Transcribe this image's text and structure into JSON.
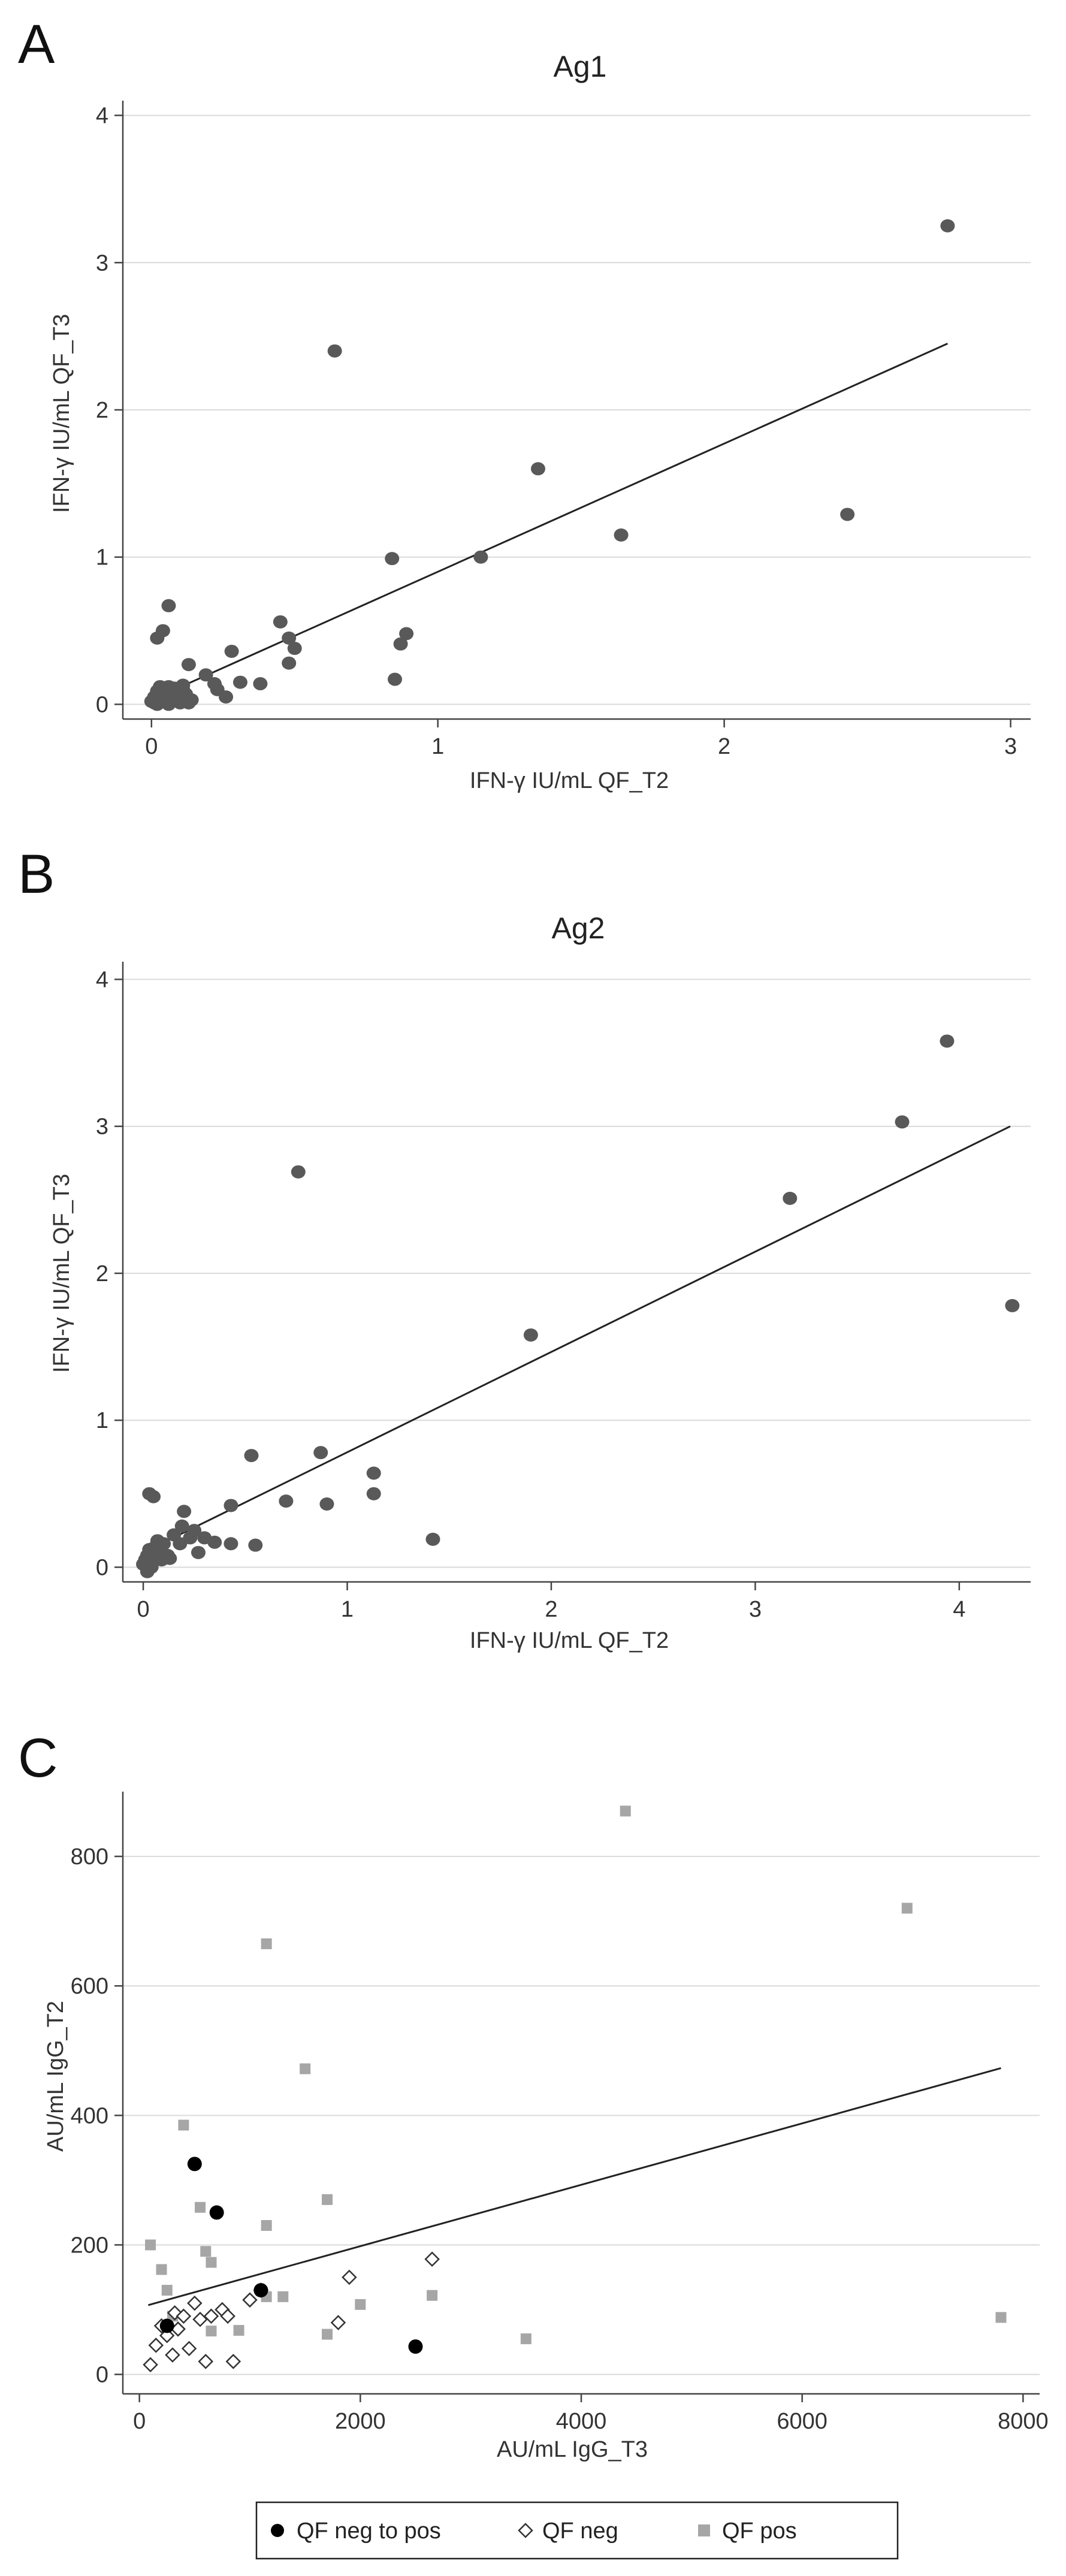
{
  "chart_data": [
    {
      "panel_label": "A",
      "type": "scatter",
      "title": "Ag1",
      "xlabel": "IFN-γ IU/mL QF_T2",
      "ylabel": "IFN-γ IU/mL QF_T3",
      "xlim": [
        -0.1,
        3.07
      ],
      "ylim": [
        -0.1,
        4.1
      ],
      "xticks": [
        0,
        1,
        2,
        3
      ],
      "yticks": [
        0,
        1,
        2,
        3,
        4
      ],
      "xtick_labels": [
        "0",
        "1",
        "2",
        "3"
      ],
      "ytick_labels": [
        "0",
        "1",
        "2",
        "3",
        "4"
      ],
      "grid": true,
      "marker_color": "#595959",
      "fit_line": {
        "x": [
          0,
          2.78
        ],
        "y": [
          0.03,
          2.45
        ]
      },
      "points": {
        "x": [
          2.78,
          0.64,
          1.35,
          1.64,
          2.43,
          0.84,
          1.15,
          0.04,
          0.06,
          0.02,
          0.45,
          0.48,
          0.5,
          0.89,
          0.87,
          0.85,
          0.28,
          0.13,
          0.19,
          0.31,
          0.38,
          0.48,
          0.23,
          0.26,
          0.0,
          0.01,
          0.02,
          0.03,
          0.05,
          0.07,
          0.08,
          0.09,
          0.1,
          0.11,
          0.12,
          0.13,
          0.02,
          0.04,
          0.06,
          0.08,
          0.1,
          0.12,
          0.14,
          0.01,
          0.03,
          0.06,
          0.09,
          0.22,
          0.11
        ],
        "y": [
          3.25,
          2.4,
          1.6,
          1.15,
          1.29,
          0.99,
          1.0,
          0.5,
          0.67,
          0.45,
          0.56,
          0.45,
          0.38,
          0.48,
          0.41,
          0.17,
          0.36,
          0.27,
          0.2,
          0.15,
          0.14,
          0.28,
          0.1,
          0.05,
          0.02,
          0.05,
          0.09,
          0.12,
          0.04,
          0.08,
          0.11,
          0.06,
          0.03,
          0.1,
          0.05,
          0.01,
          0.0,
          0.02,
          0.0,
          0.04,
          0.01,
          0.07,
          0.03,
          0.01,
          0.06,
          0.12,
          0.08,
          0.14,
          0.13
        ]
      }
    },
    {
      "panel_label": "B",
      "type": "scatter",
      "title": "Ag2",
      "xlabel": "IFN-γ IU/mL QF_T2",
      "ylabel": "IFN-γ IU/mL QF_T3",
      "xlim": [
        -0.1,
        4.35
      ],
      "ylim": [
        -0.1,
        4.12
      ],
      "xticks": [
        0,
        1,
        2,
        3,
        4
      ],
      "yticks": [
        0,
        1,
        2,
        3,
        4
      ],
      "xtick_labels": [
        "0",
        "1",
        "2",
        "3",
        "4"
      ],
      "ytick_labels": [
        "0",
        "1",
        "2",
        "3",
        "4"
      ],
      "grid": true,
      "marker_color": "#595959",
      "fit_line": {
        "x": [
          0,
          4.25
        ],
        "y": [
          0.1,
          3.0
        ]
      },
      "points": {
        "x": [
          3.94,
          3.72,
          3.17,
          4.26,
          0.76,
          1.9,
          0.53,
          0.87,
          0.7,
          0.9,
          1.13,
          1.13,
          1.42,
          0.43,
          0.55,
          0.43,
          0.03,
          0.05,
          0.2,
          0.19,
          0.25,
          0.3,
          0.23,
          0.35,
          0.27,
          0.1,
          0.12,
          0.07,
          0.0,
          0.01,
          0.02,
          0.03,
          0.05,
          0.06,
          0.08,
          0.09,
          0.02,
          0.04,
          0.13,
          0.15,
          0.18,
          0.01,
          0.03,
          0.06
        ],
        "y": [
          3.58,
          3.03,
          2.51,
          1.78,
          2.69,
          1.58,
          0.76,
          0.78,
          0.45,
          0.43,
          0.5,
          0.64,
          0.19,
          0.42,
          0.15,
          0.16,
          0.5,
          0.48,
          0.38,
          0.28,
          0.25,
          0.2,
          0.2,
          0.17,
          0.1,
          0.16,
          0.08,
          0.18,
          0.02,
          0.05,
          0.08,
          0.12,
          0.04,
          0.07,
          0.1,
          0.05,
          -0.03,
          0.0,
          0.06,
          0.22,
          0.16,
          0.03,
          0.09,
          0.14
        ]
      }
    },
    {
      "panel_label": "C",
      "type": "scatter",
      "title": "",
      "xlabel": "AU/mL  IgG_T3",
      "ylabel": "AU/mL  IgG_T2",
      "xlim": [
        -150,
        8150
      ],
      "ylim": [
        -30,
        900
      ],
      "xticks": [
        0,
        2000,
        4000,
        6000,
        8000
      ],
      "yticks": [
        0,
        200,
        400,
        600,
        800
      ],
      "xtick_labels": [
        "0",
        "2000",
        "4000",
        "6000",
        "8000"
      ],
      "ytick_labels": [
        "0",
        "200",
        "400",
        "600",
        "800"
      ],
      "grid": true,
      "fit_line": {
        "x": [
          80,
          7800
        ],
        "y": [
          107,
          473
        ]
      },
      "series": [
        {
          "name": "QF neg to pos",
          "marker": "filled-circle",
          "color": "#000000",
          "x": [
            500,
            700,
            1100,
            250,
            2500
          ],
          "y": [
            325,
            250,
            130,
            75,
            43
          ]
        },
        {
          "name": "QF neg",
          "marker": "open-diamond",
          "color": "#333333",
          "x": [
            100,
            150,
            200,
            250,
            300,
            320,
            350,
            400,
            450,
            500,
            550,
            600,
            650,
            750,
            800,
            850,
            1000,
            1100,
            1800,
            1900,
            2650
          ],
          "y": [
            15,
            45,
            75,
            60,
            30,
            95,
            70,
            90,
            40,
            110,
            85,
            20,
            90,
            100,
            90,
            20,
            115,
            130,
            80,
            150,
            178
          ]
        },
        {
          "name": "QF pos",
          "marker": "filled-square",
          "color": "#a6a6a6",
          "x": [
            4400,
            6950,
            1150,
            1500,
            400,
            1700,
            550,
            650,
            1150,
            100,
            200,
            250,
            600,
            1150,
            1300,
            2000,
            2650,
            3500,
            7800,
            900,
            650,
            1700,
            300
          ],
          "y": [
            870,
            720,
            665,
            472,
            385,
            270,
            258,
            173,
            230,
            200,
            162,
            130,
            190,
            120,
            120,
            108,
            122,
            55,
            88,
            68,
            67,
            62,
            90
          ]
        }
      ],
      "legend": {
        "placement": "bottom",
        "entries": [
          "QF neg to pos",
          "QF neg",
          "QF pos"
        ]
      }
    }
  ]
}
